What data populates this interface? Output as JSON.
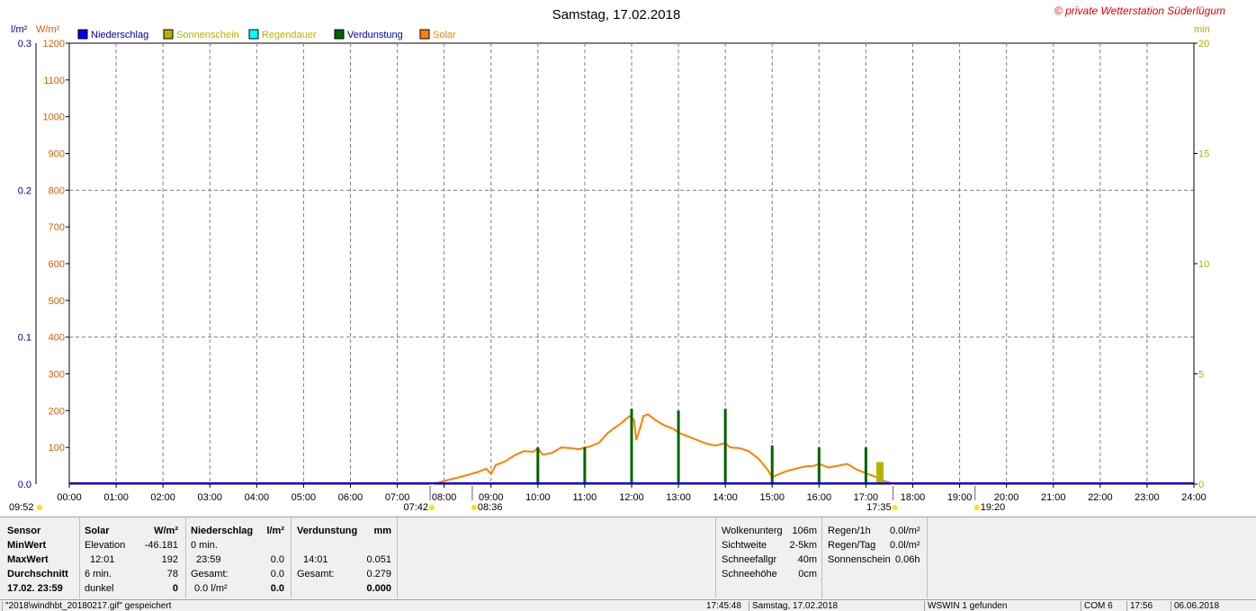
{
  "title": "Samstag, 17.02.2018",
  "copyright": "© private Wetterstation Süderlügum",
  "colors": {
    "niederschlag": "#0000ff",
    "sonnenschein": "#b4b400",
    "regendauer": "#00ffff",
    "verdunstung": "#006400",
    "solar": "#ff7f00",
    "left_axis_rain": "#0000a0",
    "left_axis_solar": "#d06000",
    "right_axis": "#b0b000"
  },
  "chart_data": {
    "type": "line",
    "title": "Samstag, 17.02.2018",
    "x_ticks": [
      "00:00",
      "01:00",
      "02:00",
      "03:00",
      "04:00",
      "05:00",
      "06:00",
      "07:00",
      "08:00",
      "09:00",
      "10:00",
      "11:00",
      "12:00",
      "13:00",
      "14:00",
      "15:00",
      "16:00",
      "17:00",
      "18:00",
      "19:00",
      "20:00",
      "21:00",
      "22:00",
      "23:00",
      "24:00"
    ],
    "axes": {
      "left_rain": {
        "unit": "l/m²",
        "range": [
          0,
          0.3
        ],
        "ticks": [
          "0.0",
          "0.1",
          "0.2",
          "0.3"
        ]
      },
      "left_solar": {
        "unit": "W/m²",
        "range": [
          0,
          1200
        ],
        "ticks": [
          "100",
          "200",
          "300",
          "400",
          "500",
          "600",
          "700",
          "800",
          "900",
          "1000",
          "1100",
          "1200"
        ]
      },
      "right_min": {
        "unit": "min",
        "range": [
          0,
          20
        ],
        "ticks": [
          "0",
          "5",
          "10",
          "15",
          "20"
        ]
      }
    },
    "legend": [
      "Niederschlag",
      "Sonnenschein",
      "Regendauer",
      "Verdunstung",
      "Solar"
    ],
    "series": [
      {
        "name": "Solar",
        "axis": "left_solar",
        "points": [
          [
            7.7,
            0
          ],
          [
            7.9,
            5
          ],
          [
            8.1,
            12
          ],
          [
            8.3,
            18
          ],
          [
            8.5,
            25
          ],
          [
            8.7,
            32
          ],
          [
            8.9,
            42
          ],
          [
            9.0,
            28
          ],
          [
            9.1,
            52
          ],
          [
            9.3,
            62
          ],
          [
            9.5,
            78
          ],
          [
            9.7,
            90
          ],
          [
            9.9,
            88
          ],
          [
            10.0,
            98
          ],
          [
            10.1,
            80
          ],
          [
            10.3,
            85
          ],
          [
            10.5,
            100
          ],
          [
            10.7,
            98
          ],
          [
            10.9,
            95
          ],
          [
            11.0,
            100
          ],
          [
            11.1,
            102
          ],
          [
            11.3,
            112
          ],
          [
            11.5,
            140
          ],
          [
            11.6,
            150
          ],
          [
            11.8,
            168
          ],
          [
            11.95,
            185
          ],
          [
            12.05,
            175
          ],
          [
            12.1,
            120
          ],
          [
            12.2,
            160
          ],
          [
            12.25,
            185
          ],
          [
            12.35,
            190
          ],
          [
            12.5,
            175
          ],
          [
            12.7,
            160
          ],
          [
            12.9,
            150
          ],
          [
            13.0,
            140
          ],
          [
            13.2,
            130
          ],
          [
            13.4,
            120
          ],
          [
            13.6,
            110
          ],
          [
            13.8,
            105
          ],
          [
            14.0,
            112
          ],
          [
            14.1,
            100
          ],
          [
            14.3,
            98
          ],
          [
            14.5,
            90
          ],
          [
            14.7,
            70
          ],
          [
            14.9,
            40
          ],
          [
            15.0,
            18
          ],
          [
            15.1,
            25
          ],
          [
            15.3,
            35
          ],
          [
            15.5,
            42
          ],
          [
            15.7,
            48
          ],
          [
            15.9,
            50
          ],
          [
            16.0,
            55
          ],
          [
            16.2,
            45
          ],
          [
            16.4,
            50
          ],
          [
            16.6,
            55
          ],
          [
            16.8,
            40
          ],
          [
            17.0,
            30
          ],
          [
            17.2,
            20
          ],
          [
            17.4,
            8
          ],
          [
            17.6,
            0
          ]
        ]
      },
      {
        "name": "Verdunstung",
        "axis": "left_solar",
        "bars": [
          [
            10.0,
            100
          ],
          [
            11.0,
            100
          ],
          [
            12.0,
            205
          ],
          [
            13.0,
            200
          ],
          [
            14.0,
            205
          ],
          [
            15.0,
            105
          ],
          [
            16.0,
            100
          ],
          [
            17.0,
            100
          ]
        ]
      },
      {
        "name": "Sonnenschein",
        "axis": "right_min",
        "bars": [
          [
            17.3,
            1.0
          ]
        ]
      },
      {
        "name": "Niederschlag",
        "axis": "left_rain",
        "constant": 0.0
      }
    ],
    "sun_markers": [
      {
        "label": "07:42",
        "type": "sunrise",
        "hour": 7.7
      },
      {
        "label": "08:36",
        "type": "culmination",
        "hour": 8.6
      },
      {
        "label": "17:35",
        "type": "sunset",
        "hour": 17.58
      },
      {
        "label": "19:20",
        "type": "moon",
        "hour": 19.33
      }
    ],
    "corner_label": "09:52"
  },
  "stats": {
    "sensor_header": "Sensor",
    "rows": [
      "MinWert",
      "MaxWert",
      "Durchschnitt",
      "17.02. 23:59"
    ],
    "solar": {
      "header": "Solar",
      "unit": "W/m²",
      "min_label": "Elevation",
      "min_value": "-46.181",
      "max_time": "12:01",
      "max_value": "192",
      "avg_label": "6 min.",
      "avg_value": "78",
      "cur_label": "dunkel",
      "cur_value": "0"
    },
    "niederschlag": {
      "header": "Niederschlag",
      "unit": "l/m²",
      "min_label": "0 min.",
      "max_time": "23:59",
      "max_value": "0.0",
      "avg_label": "Gesamt:",
      "avg_value": "0.0",
      "cur_label": "0.0 l/m²",
      "cur_value": "0.0"
    },
    "verdunstung": {
      "header": "Verdunstung",
      "unit": "mm",
      "max_time": "14:01",
      "max_value": "0.051",
      "avg_label": "Gesamt:",
      "avg_value": "0.279",
      "cur_value": "0.000"
    },
    "extra_left": [
      {
        "label": "Wolkenunterg",
        "value": "106m"
      },
      {
        "label": "Sichtweite",
        "value": "2-5km"
      },
      {
        "label": "Schneefallgr",
        "value": "40m"
      },
      {
        "label": "Schneehöhe",
        "value": "0cm"
      }
    ],
    "extra_right": [
      {
        "label": "Regen/1h",
        "value": "0.0l/m²"
      },
      {
        "label": "Regen/Tag",
        "value": "0.0l/m²"
      },
      {
        "label": "Sonnenschein",
        "value": "0.06h"
      }
    ]
  },
  "statusbar": {
    "file": "\"2018\\windhbt_20180217.gif\" gespeichert",
    "time": "17:45:48",
    "date": "Samstag, 17.02.2018",
    "wswin": "WSWIN 1 gefunden",
    "com": "COM 6",
    "clock": "17:56",
    "today": "06.06.2018"
  }
}
